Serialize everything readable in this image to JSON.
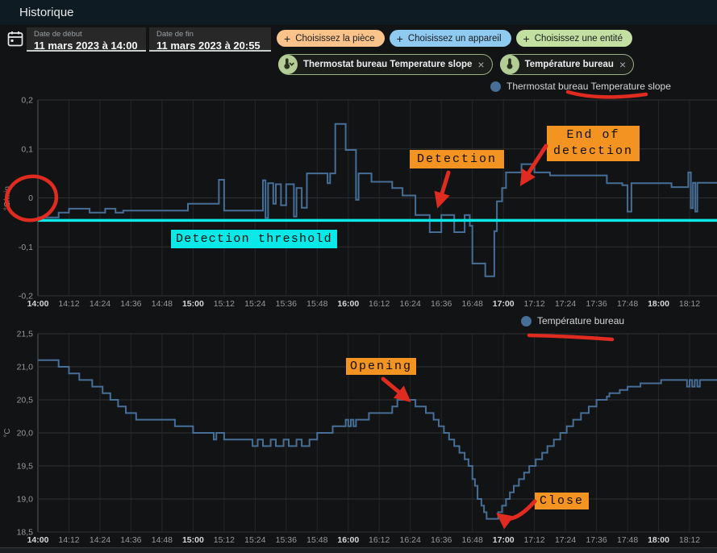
{
  "header": {
    "title": "Historique"
  },
  "filters": {
    "start": {
      "label": "Date de début",
      "value": "11 mars 2023 à 14:00"
    },
    "end": {
      "label": "Date de fin",
      "value": "11 mars 2023 à 20:55"
    },
    "buttons": [
      {
        "label": "Choisissez la pièce",
        "plus": "+",
        "color": "#f9c38b"
      },
      {
        "label": "Choisissez un appareil",
        "plus": "+",
        "color": "#8fcaf1"
      },
      {
        "label": "Choisissez une entité",
        "plus": "+",
        "color": "#c3dfa2"
      }
    ],
    "chips": [
      {
        "label": "Thermostat bureau Temperature slope",
        "close": "×",
        "icon": "thermometer-with-chevron"
      },
      {
        "label": "Température bureau",
        "close": "×",
        "icon": "thermometer"
      }
    ]
  },
  "annotations": {
    "threshold_label": "Detection threshold",
    "detection_label": "Detection",
    "end_label_line1": "End of",
    "end_label_line2": "detection",
    "opening_label": "Opening",
    "close_label": "Close",
    "colors": {
      "highlight": "#f39422",
      "threshold": "#0be8e8",
      "red": "#e02b20"
    }
  },
  "chart_data": [
    {
      "type": "line",
      "step": true,
      "legend": "Thermostat bureau Temperature slope",
      "ylabel": "°C/min",
      "ylim": [
        -0.2,
        0.2
      ],
      "yticks": [
        {
          "v": 0.2,
          "label": "0,2"
        },
        {
          "v": 0.1,
          "label": "0,1"
        },
        {
          "v": 0,
          "label": "0"
        },
        {
          "v": -0.1,
          "label": "-0,1"
        },
        {
          "v": -0.2,
          "label": "-0,2"
        }
      ],
      "xlim_minutes": [
        0,
        262.6
      ],
      "xtick_minutes": [
        0,
        12,
        24,
        36,
        48,
        60,
        72,
        84,
        96,
        108,
        120,
        132,
        144,
        156,
        168,
        180,
        192,
        204,
        216,
        228,
        240,
        252
      ],
      "xtick_labels": [
        "14:00",
        "14:12",
        "14:24",
        "14:36",
        "14:48",
        "15:00",
        "15:12",
        "15:24",
        "15:36",
        "15:48",
        "16:00",
        "16:12",
        "16:24",
        "16:36",
        "16:48",
        "17:00",
        "17:12",
        "17:24",
        "17:36",
        "17:48",
        "18:00",
        "18:12"
      ],
      "threshold": -0.046,
      "threshold_color": "#0be8e8",
      "grid": true,
      "legend_position": "top-right",
      "series": [
        {
          "name": "Thermostat bureau Temperature slope",
          "color": "#466e96",
          "points": [
            [
              0,
              -0.04
            ],
            [
              8,
              -0.03
            ],
            [
              12,
              -0.022
            ],
            [
              20,
              -0.03
            ],
            [
              26,
              -0.022
            ],
            [
              30,
              -0.03
            ],
            [
              33,
              -0.026
            ],
            [
              58,
              -0.012
            ],
            [
              70,
              0.037
            ],
            [
              72,
              -0.026
            ],
            [
              87,
              0.036
            ],
            [
              88,
              -0.041
            ],
            [
              89,
              0.03
            ],
            [
              91,
              -0.012
            ],
            [
              92,
              0.028
            ],
            [
              94,
              -0.015
            ],
            [
              96,
              0.028
            ],
            [
              99,
              -0.038
            ],
            [
              100,
              0.02
            ],
            [
              102,
              -0.02
            ],
            [
              104,
              0.05
            ],
            [
              112,
              0.03
            ],
            [
              113,
              0.05
            ],
            [
              115,
              0.151
            ],
            [
              119,
              0.098
            ],
            [
              123,
              -0.004
            ],
            [
              124,
              0.05
            ],
            [
              129,
              0.033
            ],
            [
              137,
              0.02
            ],
            [
              141,
              0.005
            ],
            [
              146,
              -0.035
            ],
            [
              151.5,
              -0.07
            ],
            [
              156,
              -0.035
            ],
            [
              161,
              -0.07
            ],
            [
              165,
              -0.035
            ],
            [
              167,
              -0.057
            ],
            [
              168,
              -0.134
            ],
            [
              173,
              -0.16
            ],
            [
              176.5,
              -0.068
            ],
            [
              177.5,
              -0.007
            ],
            [
              179.5,
              0.02
            ],
            [
              181,
              0.052
            ],
            [
              187,
              0.069
            ],
            [
              192,
              0.052
            ],
            [
              198,
              0.046
            ],
            [
              220,
              0.03
            ],
            [
              226,
              0.026
            ],
            [
              228,
              -0.028
            ],
            [
              229.5,
              0.03
            ],
            [
              245,
              0.022
            ],
            [
              251.5,
              0.052
            ],
            [
              252.5,
              -0.021
            ],
            [
              253.3,
              0.031
            ],
            [
              254.2,
              -0.028
            ],
            [
              255,
              0.031
            ]
          ]
        }
      ]
    },
    {
      "type": "line",
      "step": true,
      "legend": "Température bureau",
      "ylabel": "°C",
      "ylim": [
        18.5,
        21.5
      ],
      "yticks": [
        {
          "v": 21.5,
          "label": "21,5"
        },
        {
          "v": 21.0,
          "label": "21,0"
        },
        {
          "v": 20.5,
          "label": "20,5"
        },
        {
          "v": 20.0,
          "label": "20,0"
        },
        {
          "v": 19.5,
          "label": "19,5"
        },
        {
          "v": 19.0,
          "label": "19,0"
        },
        {
          "v": 18.5,
          "label": "18,5"
        }
      ],
      "xlim_minutes": [
        0,
        262.6
      ],
      "xtick_minutes": [
        0,
        12,
        24,
        36,
        48,
        60,
        72,
        84,
        96,
        108,
        120,
        132,
        144,
        156,
        168,
        180,
        192,
        204,
        216,
        228,
        240,
        252
      ],
      "xtick_labels": [
        "14:00",
        "14:12",
        "14:24",
        "14:36",
        "14:48",
        "15:00",
        "15:12",
        "15:24",
        "15:36",
        "15:48",
        "16:00",
        "16:12",
        "16:24",
        "16:36",
        "16:48",
        "17:00",
        "17:12",
        "17:24",
        "17:36",
        "17:48",
        "18:00",
        "18:12"
      ],
      "threshold": null,
      "grid": true,
      "legend_position": "top-right",
      "series": [
        {
          "name": "Température bureau",
          "color": "#466e96",
          "points": [
            [
              0,
              21.1
            ],
            [
              8,
              21.0
            ],
            [
              12,
              20.9
            ],
            [
              16,
              20.8
            ],
            [
              21,
              20.7
            ],
            [
              25,
              20.6
            ],
            [
              28,
              20.5
            ],
            [
              31,
              20.4
            ],
            [
              34,
              20.3
            ],
            [
              38,
              20.2
            ],
            [
              53,
              20.1
            ],
            [
              60,
              20.0
            ],
            [
              68,
              19.9
            ],
            [
              69,
              20.0
            ],
            [
              72,
              19.9
            ],
            [
              83,
              19.8
            ],
            [
              85,
              19.9
            ],
            [
              87,
              19.8
            ],
            [
              90,
              19.9
            ],
            [
              92,
              19.8
            ],
            [
              95,
              19.9
            ],
            [
              97,
              19.8
            ],
            [
              100,
              19.9
            ],
            [
              102,
              19.8
            ],
            [
              105,
              19.9
            ],
            [
              108,
              20.0
            ],
            [
              114,
              20.1
            ],
            [
              119,
              20.2
            ],
            [
              120,
              20.1
            ],
            [
              121,
              20.2
            ],
            [
              122,
              20.1
            ],
            [
              123,
              20.2
            ],
            [
              128,
              20.3
            ],
            [
              137,
              20.4
            ],
            [
              139,
              20.5
            ],
            [
              146,
              20.4
            ],
            [
              150,
              20.3
            ],
            [
              153,
              20.2
            ],
            [
              155,
              20.1
            ],
            [
              157,
              20.0
            ],
            [
              159,
              19.9
            ],
            [
              161,
              19.8
            ],
            [
              163,
              19.7
            ],
            [
              165,
              19.6
            ],
            [
              166.5,
              19.5
            ],
            [
              168,
              19.3
            ],
            [
              169,
              19.2
            ],
            [
              170,
              19.0
            ],
            [
              171.5,
              18.9
            ],
            [
              172.5,
              18.8
            ],
            [
              173.5,
              18.7
            ],
            [
              178,
              18.8
            ],
            [
              179.5,
              18.9
            ],
            [
              181,
              19.0
            ],
            [
              182.5,
              19.1
            ],
            [
              184,
              19.2
            ],
            [
              186,
              19.3
            ],
            [
              188,
              19.4
            ],
            [
              190,
              19.5
            ],
            [
              192.5,
              19.6
            ],
            [
              195,
              19.7
            ],
            [
              197,
              19.8
            ],
            [
              199.5,
              19.9
            ],
            [
              202,
              20.0
            ],
            [
              204.5,
              20.1
            ],
            [
              207,
              20.2
            ],
            [
              210,
              20.3
            ],
            [
              213,
              20.4
            ],
            [
              216,
              20.5
            ],
            [
              220,
              20.55
            ],
            [
              221,
              20.6
            ],
            [
              225,
              20.65
            ],
            [
              228,
              20.7
            ],
            [
              233,
              20.75
            ],
            [
              241,
              20.8
            ],
            [
              251,
              20.7
            ],
            [
              252,
              20.8
            ],
            [
              253,
              20.7
            ],
            [
              254,
              20.8
            ],
            [
              255,
              20.7
            ],
            [
              256,
              20.8
            ]
          ]
        }
      ]
    }
  ]
}
